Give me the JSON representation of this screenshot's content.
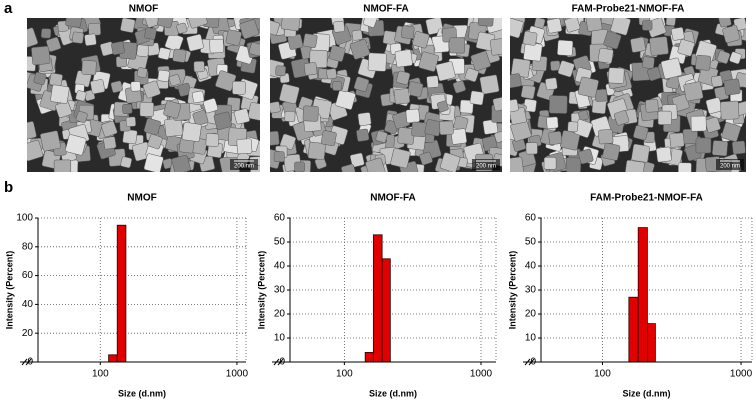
{
  "figure": {
    "panel_a_label": "a",
    "panel_b_label": "b",
    "images": [
      {
        "title": "NMOF",
        "scale_bar": "200 nm"
      },
      {
        "title": "NMOF-FA",
        "scale_bar": "200 nm"
      },
      {
        "title": "FAM-Probe21-NMOF-FA",
        "scale_bar": "200 nm"
      }
    ]
  },
  "chart_data": [
    {
      "type": "histogram",
      "title": "NMOF",
      "x_label": "Size (d.nm)",
      "y_label": "Intensity (Percent)",
      "bins": [
        115,
        133,
        154
      ],
      "values": [
        5,
        95
      ],
      "color": "#e00000",
      "x_log": true,
      "xlim": [
        35,
        1165
      ],
      "xticks": [
        100,
        1000
      ],
      "ylim": [
        0,
        100
      ],
      "yticks": [
        0,
        20,
        40,
        60,
        80,
        100
      ],
      "grid": true
    },
    {
      "type": "histogram",
      "title": "NMOF-FA",
      "x_label": "Size (d.nm)",
      "y_label": "Intensity (Percent)",
      "bins": [
        142,
        163,
        189,
        217
      ],
      "values": [
        4,
        53,
        43
      ],
      "color": "#e00000",
      "x_log": true,
      "xlim": [
        40,
        1288
      ],
      "xticks": [
        100,
        1000
      ],
      "ylim": [
        0,
        60
      ],
      "yticks": [
        0,
        10,
        20,
        30,
        40,
        50,
        60
      ],
      "grid": true
    },
    {
      "type": "histogram",
      "title": "FAM-Probe21-NMOF-FA",
      "x_label": "Size (d.nm)",
      "y_label": "Intensity (Percent)",
      "bins": [
        155,
        181,
        211,
        241
      ],
      "values": [
        27,
        56,
        16
      ],
      "color": "#e00000",
      "x_log": true,
      "xlim": [
        36,
        1200
      ],
      "xticks": [
        100,
        1000
      ],
      "ylim": [
        0,
        60
      ],
      "yticks": [
        0,
        10,
        20,
        30,
        40,
        50,
        60
      ],
      "grid": true
    }
  ]
}
